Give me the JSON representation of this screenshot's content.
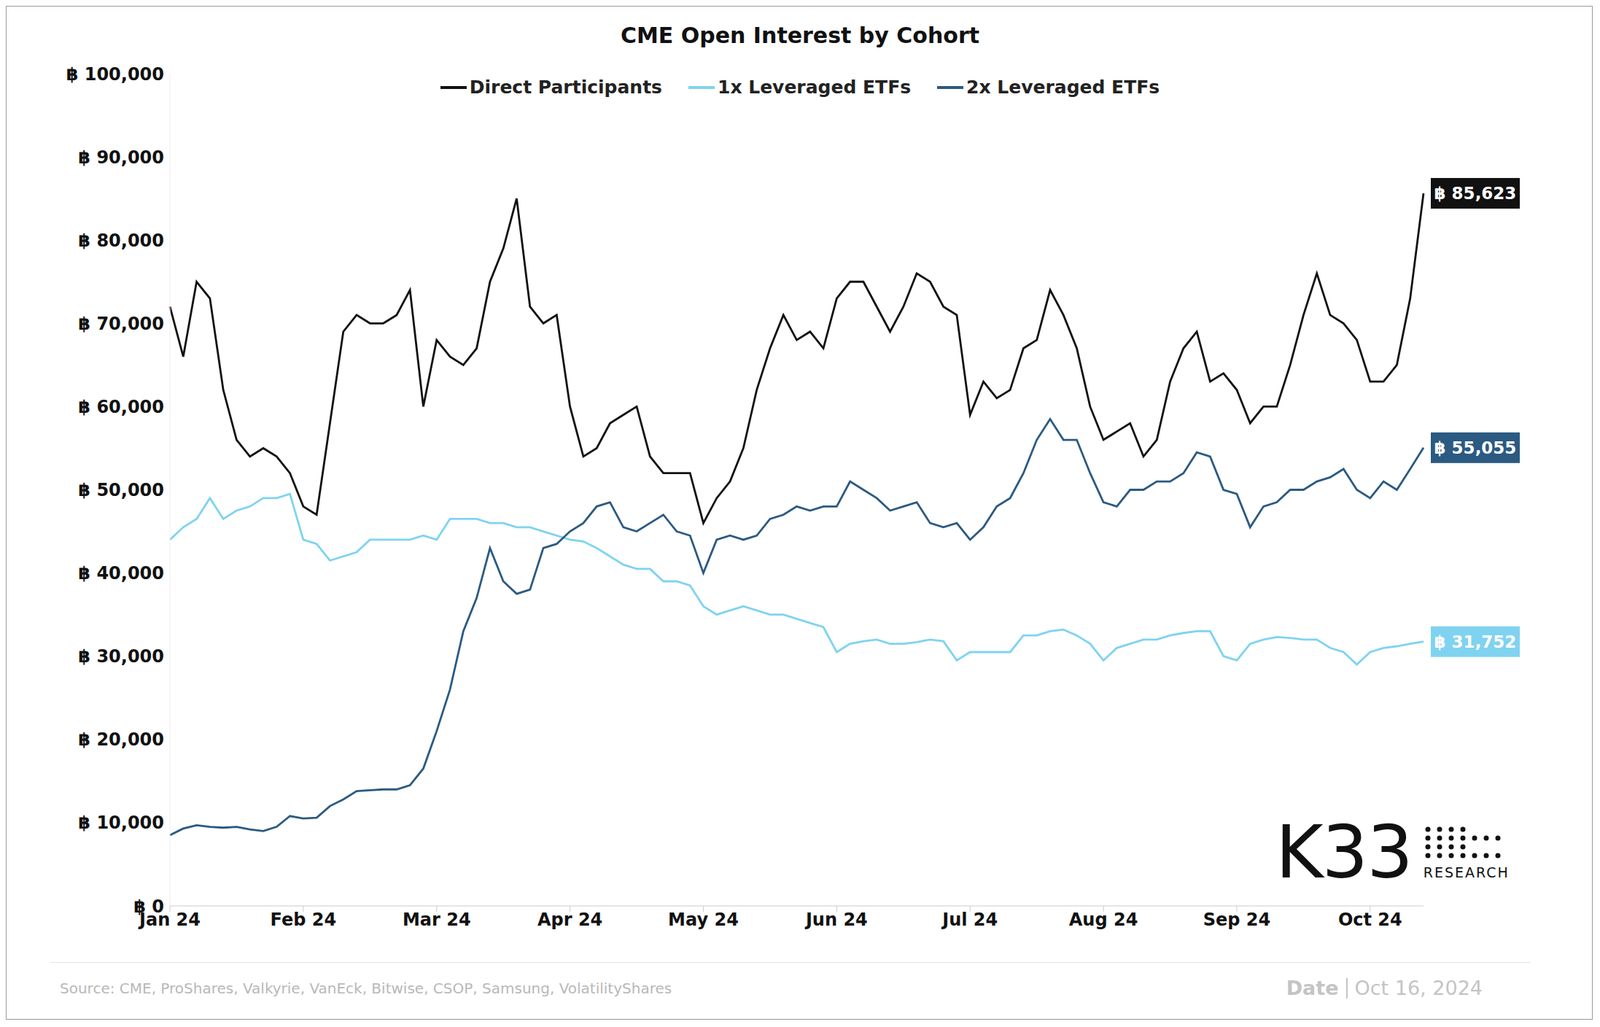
{
  "chart_data": {
    "type": "line",
    "title": "CME Open Interest by Cohort",
    "legend": "top",
    "grid": false,
    "categories": [
      "Jan 24",
      null,
      null,
      null,
      null,
      null,
      null,
      null,
      null,
      null,
      "Feb 24",
      null,
      null,
      null,
      null,
      null,
      null,
      null,
      null,
      null,
      "Mar 24",
      null,
      null,
      null,
      null,
      null,
      null,
      null,
      null,
      null,
      "Apr 24",
      null,
      null,
      null,
      null,
      null,
      null,
      null,
      null,
      null,
      "May 24",
      null,
      null,
      null,
      null,
      null,
      null,
      null,
      null,
      null,
      "Jun 24",
      null,
      null,
      null,
      null,
      null,
      null,
      null,
      null,
      null,
      "Jul 24",
      null,
      null,
      null,
      null,
      null,
      null,
      null,
      null,
      null,
      "Aug 24",
      null,
      null,
      null,
      null,
      null,
      null,
      null,
      null,
      null,
      "Sep 24",
      null,
      null,
      null,
      null,
      null,
      null,
      null,
      null,
      null,
      "Oct 24",
      null,
      null,
      null,
      null
    ],
    "ylim": [
      0,
      100000
    ],
    "yticks": [
      {
        "value": 0,
        "label": "฿ 0"
      },
      {
        "value": 10000,
        "label": "฿ 10,000"
      },
      {
        "value": 20000,
        "label": "฿ 20,000"
      },
      {
        "value": 30000,
        "label": "฿ 30,000"
      },
      {
        "value": 40000,
        "label": "฿ 40,000"
      },
      {
        "value": 50000,
        "label": "฿ 50,000"
      },
      {
        "value": 60000,
        "label": "฿ 60,000"
      },
      {
        "value": 70000,
        "label": "฿ 70,000"
      },
      {
        "value": 80000,
        "label": "฿ 80,000"
      },
      {
        "value": 90000,
        "label": "฿ 90,000"
      },
      {
        "value": 100000,
        "label": "฿ 100,000"
      }
    ],
    "series": [
      {
        "name": "Direct Participants",
        "color": "#111111",
        "values": [
          72000,
          66000,
          75000,
          73000,
          62000,
          56000,
          54000,
          55000,
          54000,
          52000,
          48000,
          47000,
          58000,
          69000,
          71000,
          70000,
          70000,
          71000,
          74000,
          60000,
          68000,
          66000,
          65000,
          67000,
          75000,
          79000,
          85000,
          72000,
          70000,
          71000,
          60000,
          54000,
          55000,
          58000,
          59000,
          60000,
          54000,
          52000,
          52000,
          52000,
          46000,
          49000,
          51000,
          55000,
          62000,
          67000,
          71000,
          68000,
          69000,
          67000,
          73000,
          75000,
          75000,
          72000,
          69000,
          72000,
          76000,
          75000,
          72000,
          71000,
          59000,
          63000,
          61000,
          62000,
          67000,
          68000,
          74000,
          71000,
          67000,
          60000,
          56000,
          57000,
          58000,
          54000,
          56000,
          63000,
          67000,
          69000,
          63000,
          64000,
          62000,
          58000,
          60000,
          60000,
          65000,
          71000,
          76000,
          71000,
          70000,
          68000,
          63000,
          63000,
          65000,
          73000,
          85623
        ]
      },
      {
        "name": "1x Leveraged ETFs",
        "color": "#7fd3f0",
        "values": [
          44000,
          45500,
          46500,
          49000,
          46500,
          47500,
          48000,
          49000,
          49000,
          49500,
          44000,
          43500,
          41500,
          42000,
          42500,
          44000,
          44000,
          44000,
          44000,
          44500,
          44000,
          46500,
          46500,
          46500,
          46000,
          46000,
          45500,
          45500,
          45000,
          44500,
          44000,
          43800,
          43000,
          42000,
          41000,
          40500,
          40500,
          39000,
          39000,
          38500,
          36000,
          35000,
          35500,
          36000,
          35500,
          35000,
          35000,
          34500,
          34000,
          33500,
          30500,
          31500,
          31800,
          32000,
          31500,
          31500,
          31700,
          32000,
          31800,
          29500,
          30500,
          30500,
          30500,
          30500,
          32500,
          32500,
          33000,
          33200,
          32500,
          31500,
          29500,
          31000,
          31500,
          32000,
          32000,
          32500,
          32800,
          33000,
          33000,
          30000,
          29500,
          31500,
          32000,
          32300,
          32200,
          32000,
          32000,
          31000,
          30500,
          29000,
          30500,
          31000,
          31200,
          31500,
          31752
        ]
      },
      {
        "name": "2x Leveraged ETFs",
        "color": "#2b5a82",
        "values": [
          8500,
          9300,
          9700,
          9500,
          9400,
          9500,
          9200,
          9000,
          9500,
          10800,
          10500,
          10600,
          12000,
          12800,
          13800,
          13900,
          14000,
          14000,
          14500,
          16500,
          21000,
          26000,
          33000,
          37000,
          43000,
          39000,
          37500,
          38000,
          43000,
          43500,
          45000,
          46000,
          48000,
          48500,
          45500,
          45000,
          46000,
          47000,
          45000,
          44500,
          40000,
          44000,
          44500,
          44000,
          44500,
          46500,
          47000,
          48000,
          47500,
          48000,
          48000,
          51000,
          50000,
          49000,
          47500,
          48000,
          48500,
          46000,
          45500,
          46000,
          44000,
          45500,
          48000,
          49000,
          52000,
          56000,
          58500,
          56000,
          56000,
          52000,
          48500,
          48000,
          50000,
          50000,
          51000,
          51000,
          52000,
          54500,
          54000,
          50000,
          49500,
          45500,
          48000,
          48500,
          50000,
          50000,
          51000,
          51500,
          52500,
          50000,
          49000,
          51000,
          50000,
          52500,
          55055
        ]
      }
    ],
    "annotations": [
      {
        "series": "Direct Participants",
        "value": 85623,
        "text": "฿ 85,623"
      },
      {
        "series": "2x Leveraged ETFs",
        "value": 55055,
        "text": "฿ 55,055"
      },
      {
        "series": "1x Leveraged ETFs",
        "value": 31752,
        "text": "฿ 31,752"
      }
    ],
    "source": "Source: CME, ProShares, Valkyrie, VanEck, Bitwise, CSOP, Samsung, VolatilityShares",
    "date_prefix": "Date",
    "date": "Oct 16, 2024",
    "logo": "K33",
    "logo_sub": "RESEARCH"
  }
}
